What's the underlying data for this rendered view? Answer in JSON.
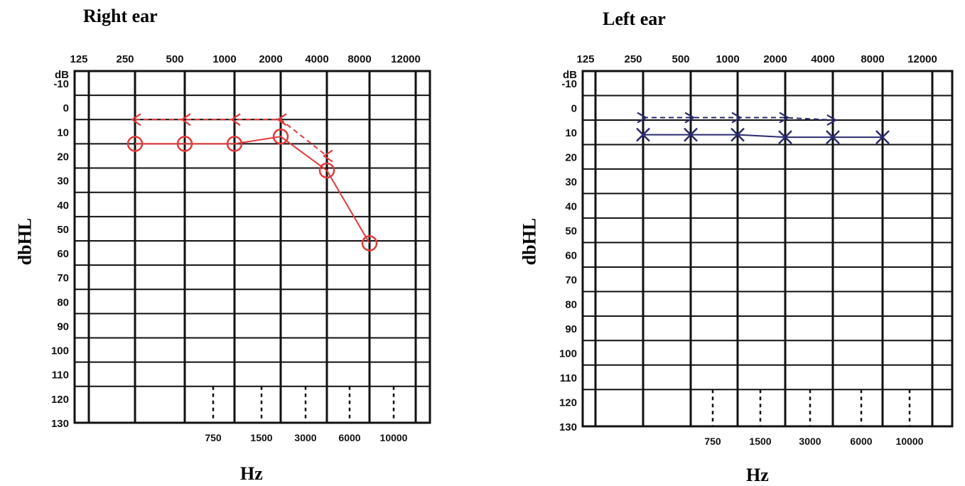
{
  "chart_data": [
    {
      "type": "line",
      "title": "Right ear",
      "ylabel": "dbHL",
      "xlabel": "Hz",
      "y_ticks": [
        "dB",
        "-10",
        "0",
        "10",
        "20",
        "30",
        "40",
        "50",
        "60",
        "70",
        "80",
        "90",
        "100",
        "110",
        "120",
        "130"
      ],
      "x_top_ticks": [
        "125",
        "250",
        "500",
        "1000",
        "2000",
        "4000",
        "8000",
        "12000"
      ],
      "x_bottom_ticks": [
        "750",
        "1500",
        "3000",
        "6000",
        "10000"
      ],
      "ylim": [
        -15,
        130
      ],
      "invert_y": true,
      "color": "#e23a3a",
      "series": [
        {
          "symbol": "circle",
          "line": "solid",
          "x": [
            "250",
            "500",
            "1000",
            "2000",
            "4000",
            "8000"
          ],
          "values": [
            15,
            15,
            15,
            12,
            26,
            56
          ]
        },
        {
          "symbol": "bracket-left",
          "line": "dashed",
          "x": [
            "250",
            "500",
            "1000",
            "2000",
            "4000"
          ],
          "values": [
            5,
            5,
            5,
            5,
            20
          ]
        }
      ]
    },
    {
      "type": "line",
      "title": "Left ear",
      "ylabel": "dbHL",
      "xlabel": "Hz",
      "y_ticks": [
        "dB",
        "-10",
        "0",
        "10",
        "20",
        "30",
        "40",
        "50",
        "60",
        "70",
        "80",
        "90",
        "100",
        "110",
        "120",
        "130"
      ],
      "x_top_ticks": [
        "125",
        "250",
        "500",
        "1000",
        "2000",
        "4000",
        "8000",
        "12000"
      ],
      "x_bottom_ticks": [
        "750",
        "1500",
        "3000",
        "6000",
        "10000"
      ],
      "ylim": [
        -15,
        130
      ],
      "invert_y": true,
      "color": "#2a2a6e",
      "series": [
        {
          "symbol": "cross",
          "line": "solid",
          "x": [
            "250",
            "500",
            "1000",
            "2000",
            "4000",
            "8000"
          ],
          "values": [
            11,
            11,
            11,
            12,
            12,
            12
          ]
        },
        {
          "symbol": "bracket-right",
          "line": "dashed",
          "x": [
            "250",
            "500",
            "1000",
            "2000",
            "4000"
          ],
          "values": [
            4,
            4,
            4,
            4,
            5
          ]
        }
      ]
    }
  ]
}
